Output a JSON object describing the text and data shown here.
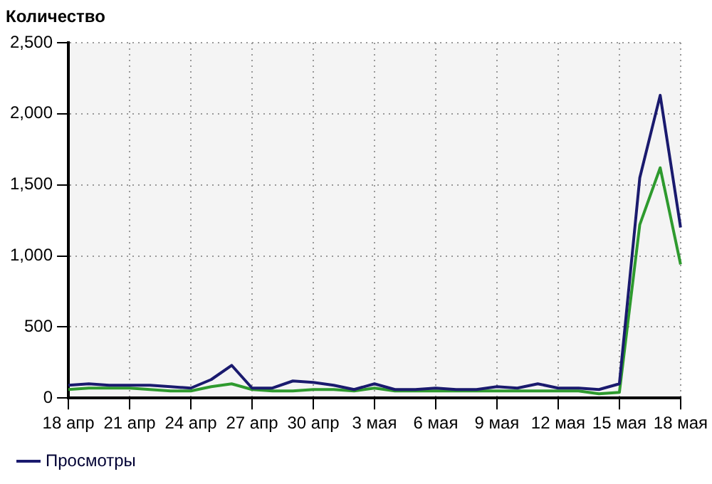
{
  "chart_data": {
    "type": "line",
    "ylabel": "Количество",
    "categories": [
      "18 апр",
      null,
      null,
      "21 апр",
      null,
      null,
      "24 апр",
      null,
      null,
      "27 апр",
      null,
      null,
      "30 апр",
      null,
      null,
      "3 мая",
      null,
      null,
      "6 мая",
      null,
      null,
      "9 мая",
      null,
      null,
      "12 мая",
      null,
      null,
      "15 мая",
      null,
      null,
      "18 мая"
    ],
    "series": [
      {
        "name": "Просмотры",
        "color": "#1a1a6e",
        "values": [
          90,
          100,
          90,
          90,
          90,
          80,
          70,
          130,
          230,
          70,
          70,
          120,
          110,
          90,
          60,
          100,
          60,
          60,
          70,
          60,
          60,
          80,
          70,
          100,
          70,
          70,
          60,
          100,
          1550,
          2130,
          1200
        ]
      },
      {
        "color": "#2e9a2e",
        "values": [
          60,
          70,
          70,
          70,
          60,
          50,
          50,
          80,
          100,
          60,
          50,
          50,
          60,
          60,
          50,
          70,
          50,
          50,
          50,
          50,
          50,
          50,
          50,
          50,
          50,
          50,
          30,
          40,
          1220,
          1620,
          940
        ]
      }
    ],
    "ylim": [
      0,
      2500
    ],
    "yticks": [
      0,
      500,
      {
        "value": 1000,
        "label": "1,000"
      },
      {
        "value": 1500,
        "label": "1,500"
      },
      {
        "value": 2000,
        "label": "2,000"
      },
      {
        "value": 2500,
        "label": "2,500"
      }
    ],
    "grid": true,
    "legend": "bottom",
    "marker": "none",
    "line_style": "solid"
  }
}
